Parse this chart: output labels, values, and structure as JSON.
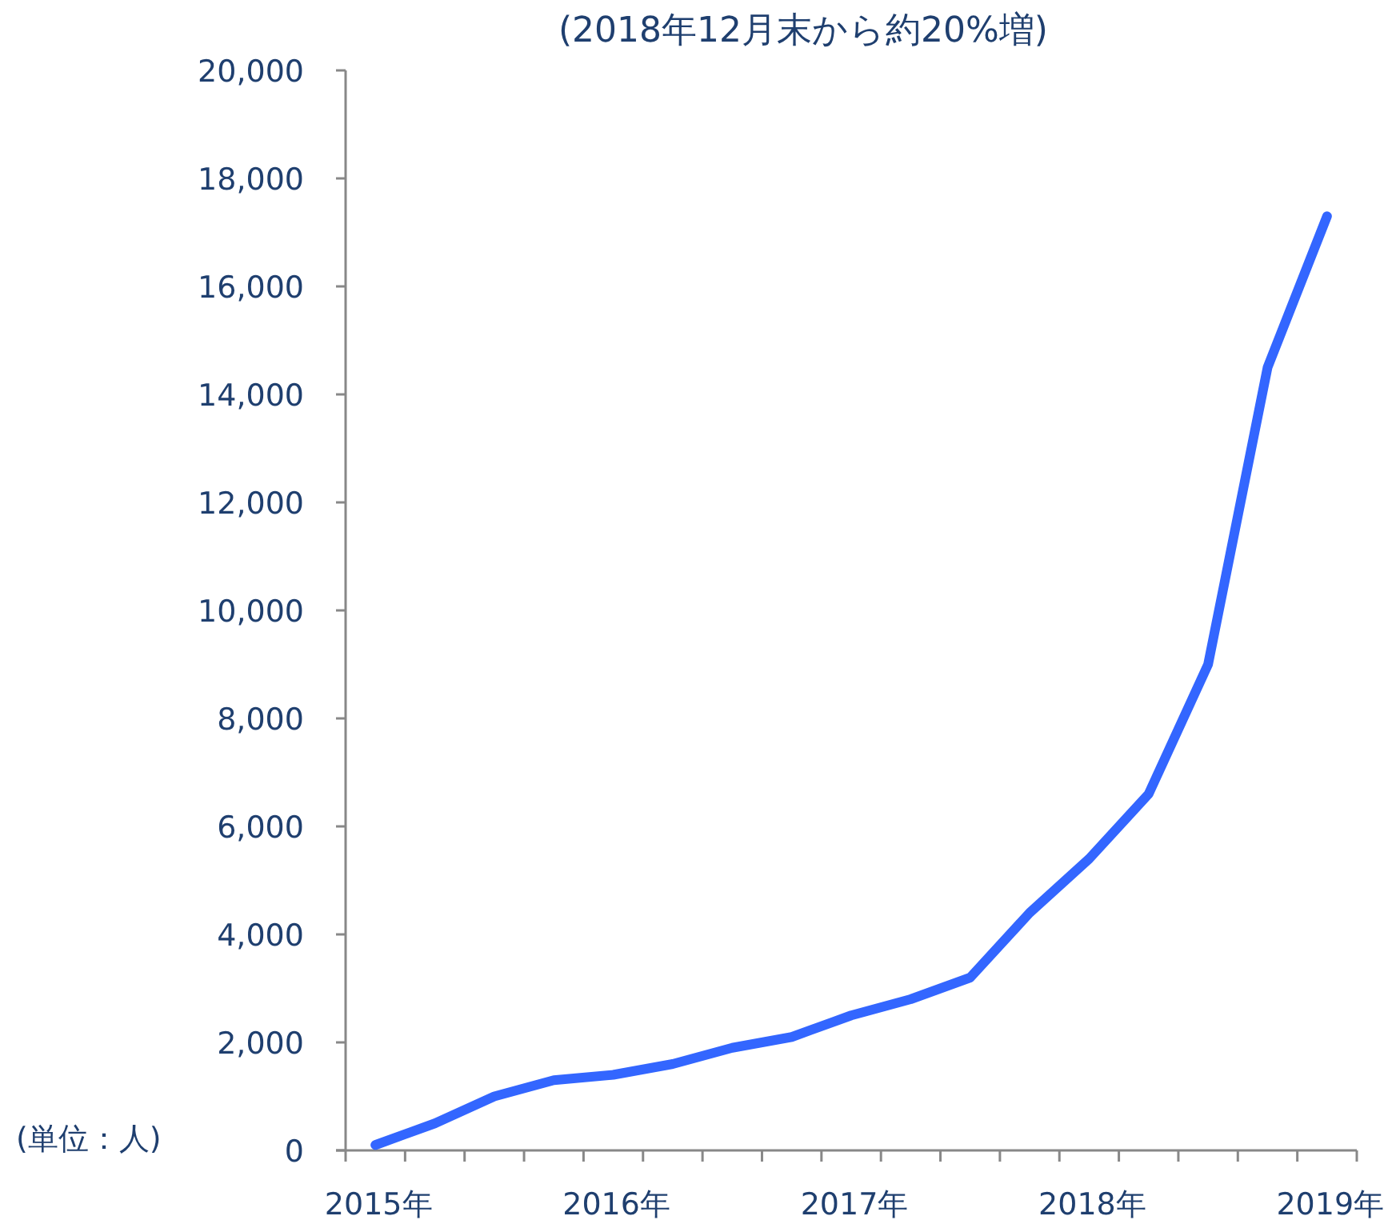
{
  "chart_data": {
    "type": "line",
    "title": "(2018年12月末から約20%増)",
    "ylabel": "(単位：人)",
    "categories": [
      "2015年",
      null,
      null,
      null,
      "2016年",
      null,
      null,
      null,
      "2017年",
      null,
      null,
      null,
      "2018年",
      null,
      null,
      null,
      "2019年"
    ],
    "series": [
      {
        "color": "#3366ff",
        "values": [
          100,
          500,
          1000,
          1300,
          1400,
          1600,
          1900,
          2100,
          2500,
          2800,
          3200,
          4400,
          5400,
          6600,
          9000,
          14500,
          17300
        ]
      }
    ],
    "ylim": [
      0,
      20000
    ],
    "yticks": [
      {
        "value": 0,
        "label": "0"
      },
      {
        "value": 2000,
        "label": "2,000"
      },
      {
        "value": 4000,
        "label": "4,000"
      },
      {
        "value": 6000,
        "label": "6,000"
      },
      {
        "value": 8000,
        "label": "8,000"
      },
      {
        "value": 10000,
        "label": "10,000"
      },
      {
        "value": 12000,
        "label": "12,000"
      },
      {
        "value": 14000,
        "label": "14,000"
      },
      {
        "value": 16000,
        "label": "16,000"
      },
      {
        "value": 18000,
        "label": "18,000"
      },
      {
        "value": 20000,
        "label": "20,000"
      }
    ],
    "marker": "none",
    "line_style": "solid"
  }
}
